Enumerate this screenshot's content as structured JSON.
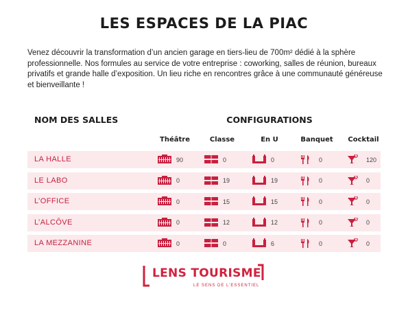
{
  "title": "LES ESPACES DE LA PIAC",
  "intro": "Venez découvrir la transformation d’un ancien garage en tiers-lieu de 700m² dédié à la sphère professionnelle. Nos formules au service de votre entreprise : coworking, salles de réunion, bureaux privatifs et grande halle d’exposition. Un lieu riche en rencontres grâce à une communauté généreuse et bienveillante !",
  "table": {
    "rooms_heading": "NOM DES SALLES",
    "configs_heading": "CONFIGURATIONS",
    "columns": [
      "Théâtre",
      "Classe",
      "En U",
      "Banquet",
      "Cocktail"
    ],
    "column_icons": [
      "theatre-seating-icon",
      "classroom-tables-icon",
      "u-shape-icon",
      "fork-knife-icon",
      "cocktail-glass-icon"
    ],
    "rows": [
      {
        "name": "LA HALLE",
        "values": [
          "90",
          "0",
          "0",
          "0",
          "120"
        ]
      },
      {
        "name": "LE LABO",
        "values": [
          "0",
          "19",
          "19",
          "0",
          "0"
        ]
      },
      {
        "name": "L’OFFICE",
        "values": [
          "0",
          "15",
          "15",
          "0",
          "0"
        ]
      },
      {
        "name": "L’ALCÔVE",
        "values": [
          "0",
          "12",
          "12",
          "0",
          "0"
        ]
      },
      {
        "name": "LA MEZZANINE",
        "values": [
          "0",
          "0",
          "6",
          "0",
          "0"
        ]
      }
    ]
  },
  "logo": {
    "name": "LENS TOURISME",
    "tagline": "LE SENS DE L’ESSENTIEL"
  },
  "colors": {
    "accent": "#d1223e",
    "row_background": "#fbe9ec"
  }
}
